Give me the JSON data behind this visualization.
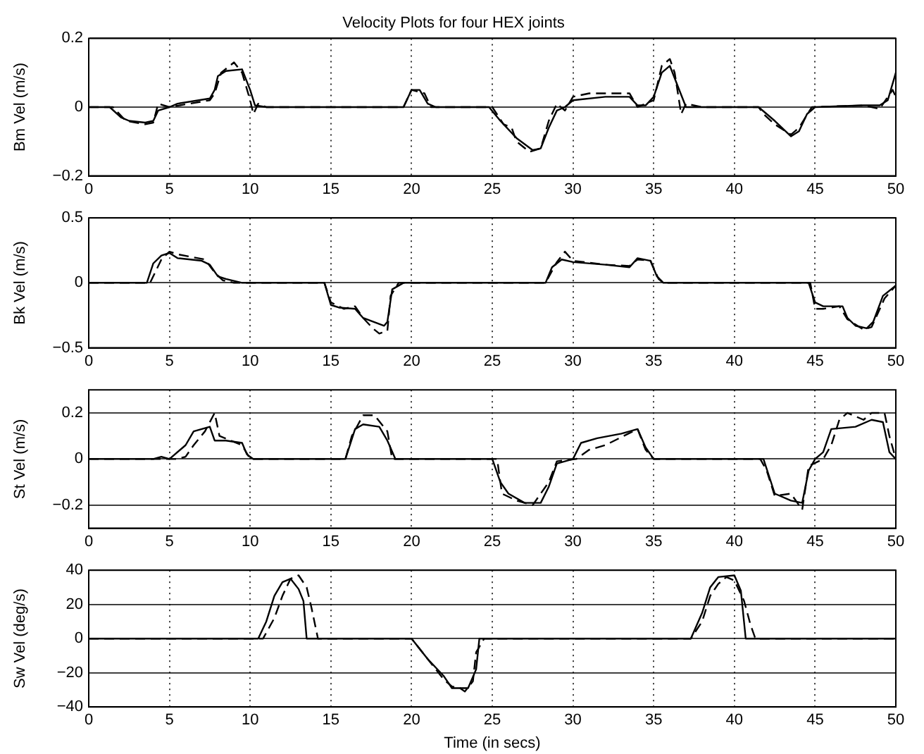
{
  "chart_data": [
    {
      "type": "line",
      "title": "Velocity Plots for four HEX joints",
      "ylabel": "Bm Vel (m/s)",
      "xlim": [
        0,
        50
      ],
      "xticks": [
        0,
        5,
        10,
        15,
        20,
        25,
        30,
        35,
        40,
        45,
        50
      ],
      "ylim": [
        -0.2,
        0.2
      ],
      "yticks": [
        -0.2,
        0,
        0.2
      ],
      "grid": true,
      "series": [
        {
          "color": "#000000",
          "line_style": "solid",
          "x": [
            0,
            1.3,
            2,
            2.5,
            3.5,
            4,
            4.3,
            5,
            5.5,
            7.5,
            7.8,
            8,
            8.5,
            9.5,
            10,
            10.3,
            11,
            19.5,
            20,
            20.5,
            21,
            21.5,
            24.8,
            25.5,
            26.5,
            27.5,
            28,
            28.5,
            29,
            29.5,
            30,
            32,
            33.5,
            34,
            34.5,
            35,
            35.5,
            36,
            36.5,
            37,
            41.5,
            42.5,
            43.5,
            44,
            44.5,
            45,
            48,
            49,
            49.5,
            50
          ],
          "values": [
            0,
            0,
            -0.03,
            -0.04,
            -0.045,
            -0.04,
            -0.01,
            0,
            0.01,
            0.025,
            0.05,
            0.09,
            0.105,
            0.11,
            0.05,
            0.005,
            0,
            0,
            0.05,
            0.05,
            0.01,
            0,
            0,
            -0.04,
            -0.09,
            -0.125,
            -0.12,
            -0.06,
            -0.01,
            0,
            0.02,
            0.03,
            0.03,
            0.005,
            0.005,
            0.03,
            0.1,
            0.12,
            0.06,
            0,
            0,
            -0.04,
            -0.085,
            -0.07,
            -0.02,
            0,
            0.005,
            0.005,
            0.02,
            0.1
          ]
        },
        {
          "color": "#000000",
          "line_style": "dashed",
          "x": [
            0,
            1.5,
            2.3,
            3.5,
            4,
            4.3,
            5,
            7.5,
            7.8,
            8.2,
            9,
            9.5,
            10,
            10.2,
            10.5,
            11,
            19.5,
            20,
            20.8,
            21.2,
            25,
            25.7,
            26.2,
            26.5,
            27.3,
            28,
            28.5,
            29,
            29.5,
            30,
            31,
            33.5,
            34,
            35,
            35.5,
            36,
            36.3,
            36.7,
            37,
            38,
            41.5,
            41.8,
            42.5,
            43.5,
            44,
            44.8,
            48,
            49,
            49.8,
            50
          ],
          "values": [
            0,
            0,
            -0.04,
            -0.05,
            -0.045,
            0.01,
            0,
            0.02,
            0.04,
            0.1,
            0.13,
            0.1,
            0.02,
            -0.02,
            0.01,
            0,
            0,
            0.05,
            0.04,
            0,
            0,
            -0.05,
            -0.06,
            -0.1,
            -0.13,
            -0.12,
            -0.04,
            0.01,
            -0.01,
            0.03,
            0.04,
            0.04,
            0,
            0.02,
            0.12,
            0.14,
            0.1,
            -0.02,
            0.01,
            0,
            0,
            -0.02,
            -0.05,
            -0.08,
            -0.06,
            0,
            0.005,
            -0.005,
            0.05,
            0.03
          ]
        }
      ]
    },
    {
      "type": "line",
      "ylabel": "Bk Vel (m/s)",
      "xlim": [
        0,
        50
      ],
      "xticks": [
        0,
        5,
        10,
        15,
        20,
        25,
        30,
        35,
        40,
        45,
        50
      ],
      "ylim": [
        -0.5,
        0.5
      ],
      "yticks": [
        -0.5,
        0,
        0.5
      ],
      "grid": true,
      "series": [
        {
          "color": "#000000",
          "line_style": "solid",
          "x": [
            0,
            3.6,
            4,
            4.5,
            5,
            5.5,
            7,
            7.5,
            8,
            8.5,
            9.5,
            14.6,
            15,
            15.5,
            16.5,
            17,
            18.3,
            18.5,
            18.8,
            19.5,
            28.3,
            28.7,
            29.3,
            30,
            32,
            33.5,
            34,
            34.8,
            35.2,
            35.6,
            44.6,
            45,
            45.5,
            46.7,
            47,
            47.5,
            48.2,
            48.6,
            49.2,
            50
          ],
          "values": [
            0,
            0,
            0.15,
            0.21,
            0.23,
            0.19,
            0.17,
            0.14,
            0.05,
            0.03,
            0,
            0,
            -0.17,
            -0.19,
            -0.2,
            -0.27,
            -0.33,
            -0.3,
            -0.05,
            0,
            0,
            0.12,
            0.18,
            0.16,
            0.14,
            0.12,
            0.19,
            0.17,
            0.05,
            0,
            0,
            -0.15,
            -0.18,
            -0.18,
            -0.27,
            -0.33,
            -0.35,
            -0.3,
            -0.1,
            -0.02
          ]
        },
        {
          "color": "#000000",
          "line_style": "dashed",
          "x": [
            0,
            3.8,
            4.5,
            5,
            5.5,
            7.2,
            7.8,
            8.3,
            9,
            14.6,
            15,
            15.8,
            16.5,
            17,
            17.6,
            18,
            18.5,
            18.7,
            19.2,
            28.3,
            29,
            29.5,
            30,
            32,
            33.5,
            34,
            34.8,
            35.3,
            35.6,
            44.7,
            45,
            45.5,
            46.5,
            46.7,
            47,
            48,
            48.5,
            49.3,
            50
          ],
          "values": [
            0,
            0,
            0.18,
            0.24,
            0.22,
            0.18,
            0.08,
            0.02,
            0,
            0,
            -0.15,
            -0.2,
            -0.18,
            -0.27,
            -0.35,
            -0.39,
            -0.37,
            -0.1,
            0,
            0,
            0.16,
            0.24,
            0.17,
            0.14,
            0.13,
            0.18,
            0.17,
            0.03,
            0,
            0,
            -0.2,
            -0.2,
            -0.18,
            -0.22,
            -0.28,
            -0.36,
            -0.34,
            -0.12,
            -0.02
          ]
        }
      ]
    },
    {
      "type": "line",
      "ylabel": "St Vel (m/s)",
      "xlim": [
        0,
        50
      ],
      "xticks": [
        0,
        5,
        10,
        15,
        20,
        25,
        30,
        35,
        40,
        45,
        50
      ],
      "ylim": [
        -0.3,
        0.3
      ],
      "yticks": [
        -0.2,
        0,
        0.2
      ],
      "grid": true,
      "series": [
        {
          "color": "#000000",
          "line_style": "solid",
          "x": [
            0,
            4,
            4.5,
            5,
            6,
            6.5,
            7.5,
            7.8,
            8.5,
            9.5,
            9.8,
            10.2,
            15.9,
            16.5,
            17,
            18,
            18.5,
            19,
            25,
            25.5,
            26,
            27,
            28,
            28.5,
            29,
            30,
            30.5,
            31.5,
            33,
            34,
            34.5,
            35,
            41.8,
            42.5,
            43.5,
            44.2,
            44.6,
            45,
            45.5,
            46,
            47.5,
            48.5,
            49.2,
            49.6,
            50
          ],
          "values": [
            0,
            0,
            0.01,
            0,
            0.06,
            0.12,
            0.14,
            0.08,
            0.08,
            0.07,
            0.02,
            0,
            0,
            0.13,
            0.15,
            0.14,
            0.08,
            0,
            0,
            -0.1,
            -0.15,
            -0.19,
            -0.19,
            -0.12,
            -0.02,
            0,
            0.07,
            0.09,
            0.11,
            0.13,
            0.05,
            0,
            0,
            -0.15,
            -0.18,
            -0.19,
            -0.05,
            0,
            0.03,
            0.13,
            0.14,
            0.17,
            0.16,
            0.03,
            0
          ]
        },
        {
          "color": "#000000",
          "line_style": "dashed",
          "x": [
            0,
            5.5,
            6,
            6.5,
            7.2,
            7.8,
            8.1,
            9.5,
            10,
            15.9,
            16.3,
            17,
            17.7,
            18.5,
            18.8,
            25.3,
            25.6,
            26.5,
            27.5,
            28.5,
            29,
            30.2,
            31,
            32,
            34,
            34.5,
            35,
            41.6,
            42,
            42.5,
            43.5,
            44,
            44.2,
            44.6,
            45.5,
            46,
            46.5,
            47,
            48,
            48.5,
            49.3,
            49.6,
            50
          ],
          "values": [
            0,
            0,
            0.01,
            0.06,
            0.12,
            0.2,
            0.1,
            0.06,
            0,
            0,
            0.1,
            0.19,
            0.19,
            0.12,
            0,
            0,
            -0.15,
            -0.18,
            -0.2,
            -0.1,
            -0.01,
            0,
            0.04,
            0.06,
            0.13,
            0.04,
            0,
            0,
            -0.05,
            -0.16,
            -0.15,
            -0.2,
            -0.22,
            -0.03,
            0,
            0.06,
            0.17,
            0.2,
            0.17,
            0.2,
            0.2,
            0.1,
            0
          ]
        }
      ]
    },
    {
      "type": "line",
      "ylabel": "Sw Vel (deg/s)",
      "xlabel": "Time (in secs)",
      "xlim": [
        0,
        50
      ],
      "xticks": [
        0,
        5,
        10,
        15,
        20,
        25,
        30,
        35,
        40,
        45,
        50
      ],
      "ylim": [
        -40,
        40
      ],
      "yticks": [
        -40,
        -20,
        0,
        20,
        40
      ],
      "grid": true,
      "series": [
        {
          "color": "#000000",
          "line_style": "solid",
          "x": [
            0,
            10.5,
            11,
            11.5,
            12,
            12.5,
            13,
            13.3,
            13.5,
            20,
            21,
            22,
            22.5,
            23.5,
            24,
            24.2,
            37.3,
            38,
            38.5,
            39,
            40,
            40.4,
            40.7,
            50
          ],
          "values": [
            0,
            0,
            10,
            25,
            33,
            35,
            29,
            22,
            0,
            0,
            -12,
            -22,
            -29,
            -29,
            -18,
            0,
            0,
            15,
            30,
            36,
            37,
            28,
            0,
            0
          ]
        },
        {
          "color": "#000000",
          "line_style": "dashed",
          "x": [
            0,
            10.8,
            11.5,
            12,
            12.5,
            13,
            13.5,
            13.8,
            14.2,
            20,
            21,
            22,
            22.5,
            23,
            23.3,
            23.8,
            24,
            24.5,
            37.3,
            38,
            38.5,
            39,
            39.5,
            40,
            40.6,
            41,
            41.3,
            50
          ],
          "values": [
            0,
            0,
            12,
            25,
            35,
            37,
            30,
            18,
            0,
            0,
            -12,
            -24,
            -28,
            -29,
            -31,
            -25,
            -8,
            0,
            0,
            10,
            25,
            32,
            36,
            34,
            22,
            8,
            0,
            0
          ]
        }
      ]
    }
  ]
}
